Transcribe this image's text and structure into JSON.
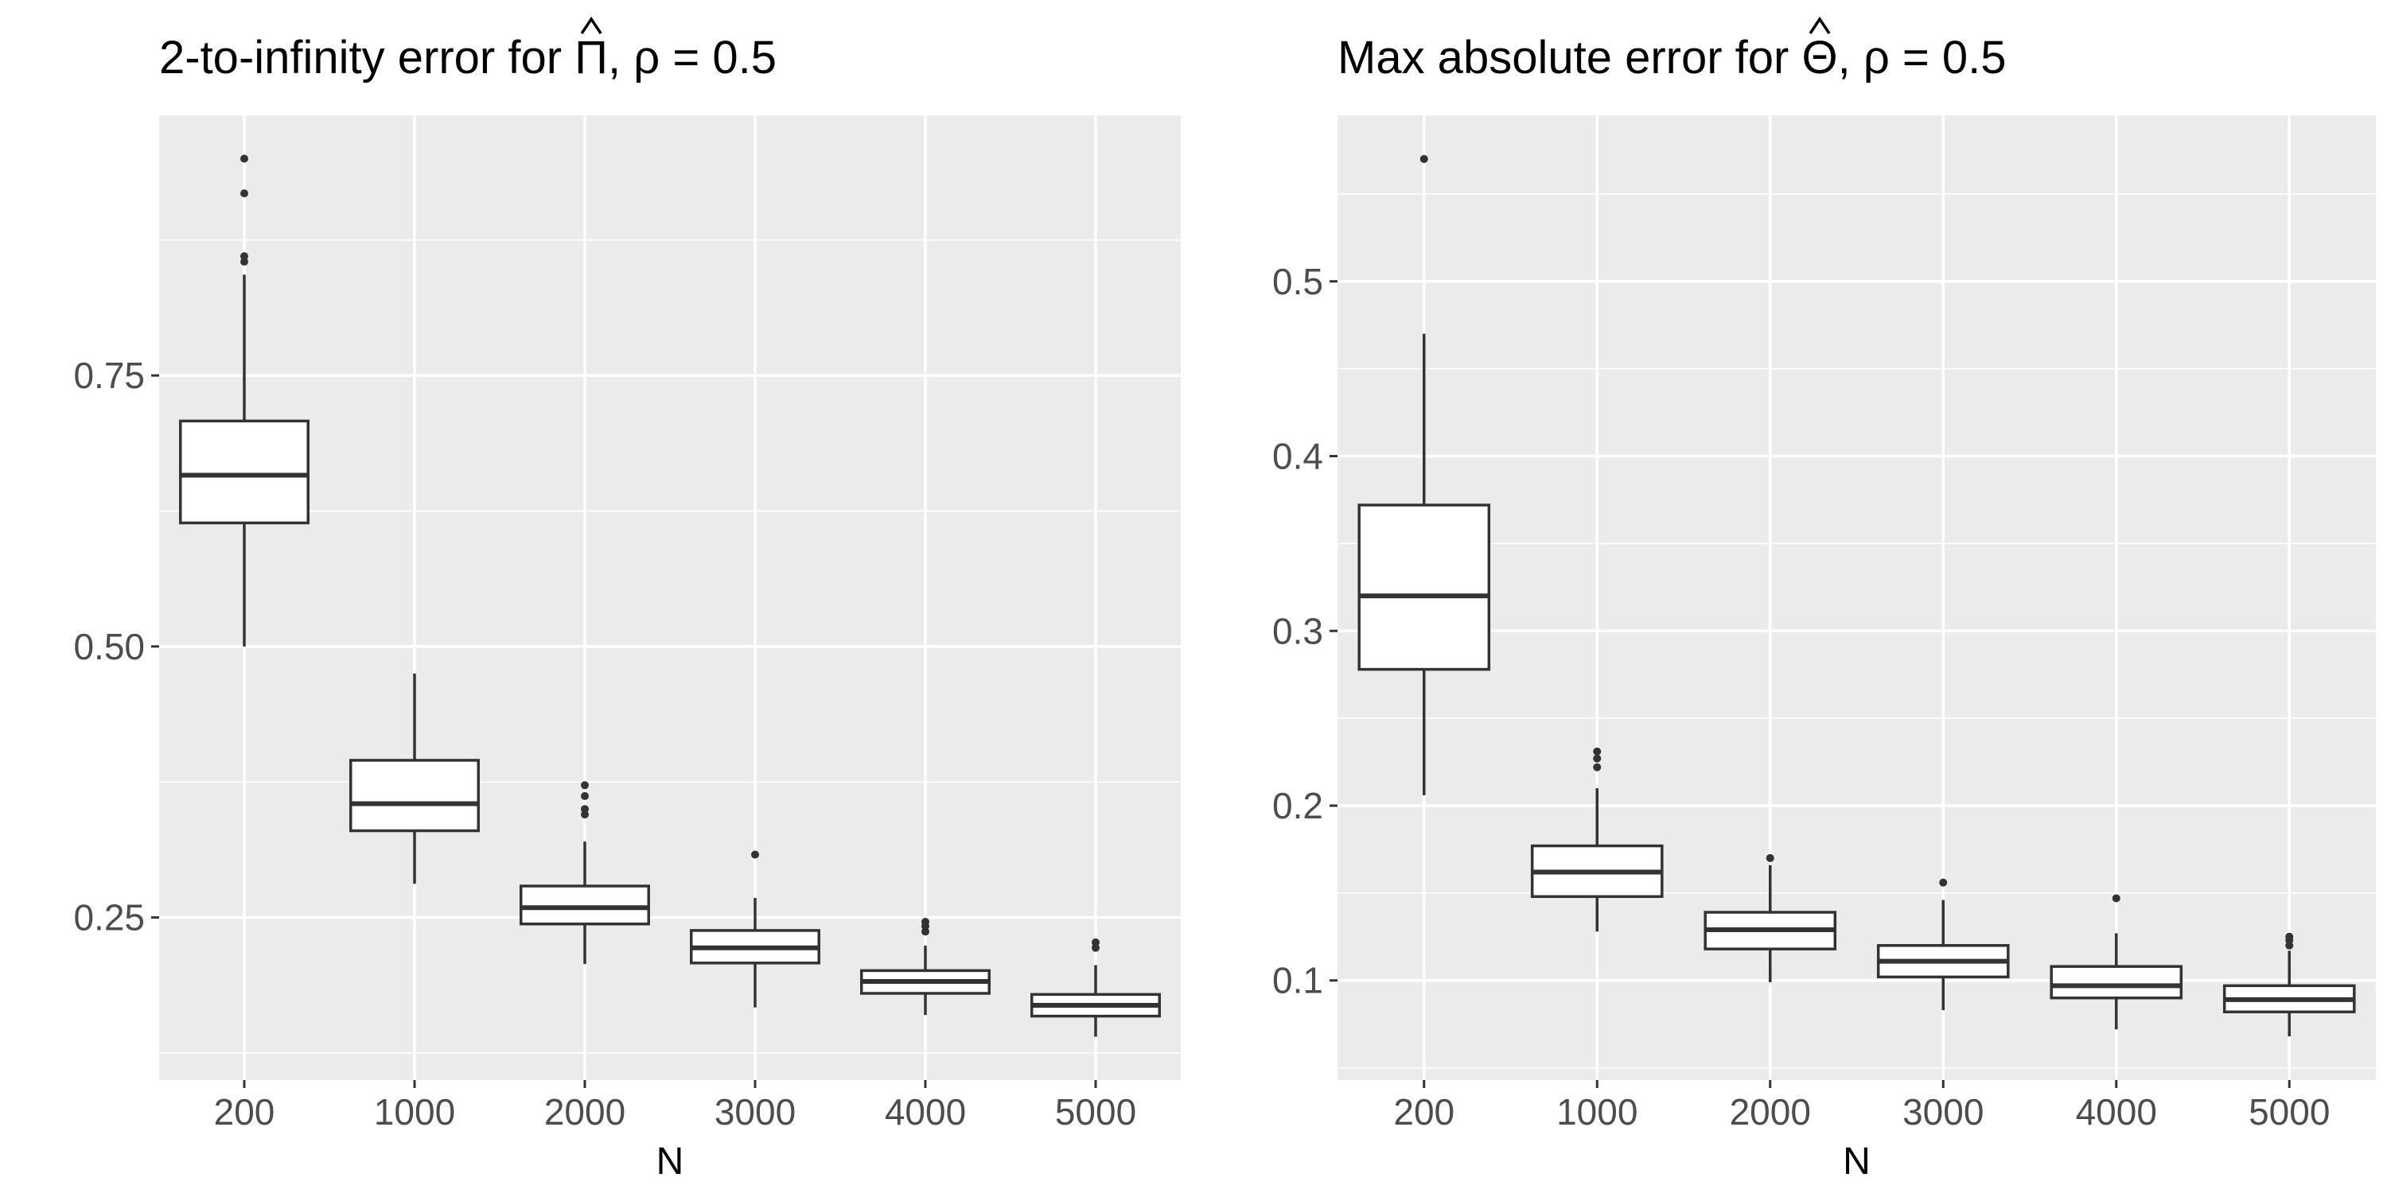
{
  "chart_data": [
    {
      "type": "box",
      "title": "2-to-infinity error for Π̂, ρ = 0.5",
      "title_parts": {
        "prefix": "2-to-infinity error for ",
        "symbol": "Π",
        "suffix": ", ρ = 0.5"
      },
      "xlabel": "N",
      "ylabel": "",
      "categories": [
        "200",
        "1000",
        "2000",
        "3000",
        "4000",
        "5000"
      ],
      "ylim": [
        0.1,
        0.99
      ],
      "yticks": [
        0.25,
        0.5,
        0.75
      ],
      "ytick_labels": [
        "0.25",
        "0.50",
        "0.75"
      ],
      "grid": true,
      "boxes": [
        {
          "category": "200",
          "q1": 0.614,
          "median": 0.658,
          "q3": 0.708,
          "whisker_low": 0.5,
          "whisker_high": 0.843,
          "outliers": [
            0.855,
            0.86,
            0.918,
            0.95
          ]
        },
        {
          "category": "1000",
          "q1": 0.33,
          "median": 0.355,
          "q3": 0.395,
          "whisker_low": 0.281,
          "whisker_high": 0.475,
          "outliers": []
        },
        {
          "category": "2000",
          "q1": 0.244,
          "median": 0.259,
          "q3": 0.279,
          "whisker_low": 0.207,
          "whisker_high": 0.32,
          "outliers": [
            0.345,
            0.35,
            0.362,
            0.372
          ]
        },
        {
          "category": "3000",
          "q1": 0.208,
          "median": 0.222,
          "q3": 0.238,
          "whisker_low": 0.167,
          "whisker_high": 0.268,
          "outliers": [
            0.308
          ]
        },
        {
          "category": "4000",
          "q1": 0.18,
          "median": 0.191,
          "q3": 0.201,
          "whisker_low": 0.16,
          "whisker_high": 0.224,
          "outliers": [
            0.237,
            0.242,
            0.246
          ]
        },
        {
          "category": "5000",
          "q1": 0.159,
          "median": 0.169,
          "q3": 0.179,
          "whisker_low": 0.14,
          "whisker_high": 0.206,
          "outliers": [
            0.222,
            0.227
          ]
        }
      ]
    },
    {
      "type": "box",
      "title": "Max absolute error for Θ̂, ρ = 0.5",
      "title_parts": {
        "prefix": "Max absolute error for ",
        "symbol": "Θ",
        "suffix": ", ρ = 0.5"
      },
      "xlabel": "N",
      "ylabel": "",
      "categories": [
        "200",
        "1000",
        "2000",
        "3000",
        "4000",
        "5000"
      ],
      "ylim": [
        0.043,
        0.595
      ],
      "yticks": [
        0.1,
        0.2,
        0.3,
        0.4,
        0.5
      ],
      "ytick_labels": [
        "0.1",
        "0.2",
        "0.3",
        "0.4",
        "0.5"
      ],
      "grid": true,
      "boxes": [
        {
          "category": "200",
          "q1": 0.278,
          "median": 0.32,
          "q3": 0.372,
          "whisker_low": 0.206,
          "whisker_high": 0.47,
          "outliers": [
            0.57
          ]
        },
        {
          "category": "1000",
          "q1": 0.148,
          "median": 0.162,
          "q3": 0.177,
          "whisker_low": 0.128,
          "whisker_high": 0.21,
          "outliers": [
            0.222,
            0.227,
            0.231
          ]
        },
        {
          "category": "2000",
          "q1": 0.118,
          "median": 0.129,
          "q3": 0.139,
          "whisker_low": 0.099,
          "whisker_high": 0.166,
          "outliers": [
            0.17
          ]
        },
        {
          "category": "3000",
          "q1": 0.102,
          "median": 0.111,
          "q3": 0.12,
          "whisker_low": 0.083,
          "whisker_high": 0.146,
          "outliers": [
            0.156
          ]
        },
        {
          "category": "4000",
          "q1": 0.09,
          "median": 0.097,
          "q3": 0.108,
          "whisker_low": 0.072,
          "whisker_high": 0.127,
          "outliers": [
            0.147
          ]
        },
        {
          "category": "5000",
          "q1": 0.082,
          "median": 0.089,
          "q3": 0.097,
          "whisker_low": 0.068,
          "whisker_high": 0.117,
          "outliers": [
            0.12,
            0.123,
            0.125
          ]
        }
      ]
    }
  ],
  "colors": {
    "panel_background": "#ebebeb",
    "grid_major": "#ffffff",
    "box_fill": "#ffffff",
    "box_line": "#333333",
    "tick_text": "#4d4d4d",
    "tick_mark": "#333333"
  }
}
